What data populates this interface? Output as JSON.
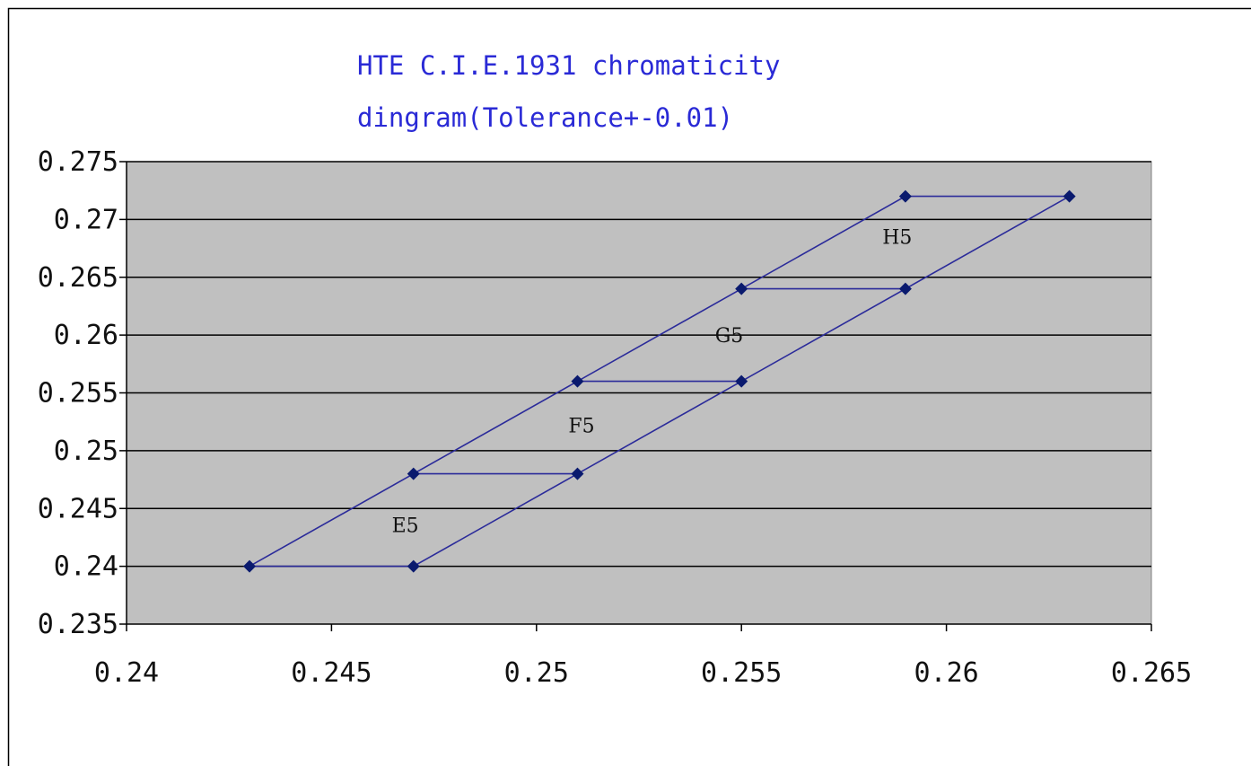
{
  "chart_data": {
    "type": "line",
    "title_lines": [
      "HTE C.I.E.1931 chromaticity",
      "dingram(Tolerance+-0.01)"
    ],
    "xlim": [
      0.24,
      0.265
    ],
    "ylim": [
      0.235,
      0.275
    ],
    "x_ticks": [
      0.24,
      0.245,
      0.25,
      0.255,
      0.26,
      0.265
    ],
    "x_tick_labels": [
      "0.24",
      "0.245",
      "0.25",
      "0.255",
      "0.26",
      "0.265"
    ],
    "y_ticks": [
      0.235,
      0.24,
      0.245,
      0.25,
      0.255,
      0.26,
      0.265,
      0.27,
      0.275
    ],
    "y_tick_labels": [
      "0.235",
      "0.24",
      "0.245",
      "0.25",
      "0.255",
      "0.26",
      "0.265",
      "0.27",
      "0.275"
    ],
    "grid": "horizontal",
    "plot_background": "#c0c0c0",
    "line_color": "#2b2b9a",
    "marker_color": "#0a1a6e",
    "series": [
      {
        "points": [
          [
            0.243,
            0.24
          ],
          [
            0.259,
            0.272
          ],
          [
            0.263,
            0.272
          ],
          [
            0.247,
            0.24
          ],
          [
            0.243,
            0.24
          ]
        ]
      },
      {
        "points": [
          [
            0.247,
            0.248
          ],
          [
            0.251,
            0.248
          ]
        ]
      },
      {
        "points": [
          [
            0.251,
            0.256
          ],
          [
            0.255,
            0.256
          ]
        ]
      },
      {
        "points": [
          [
            0.255,
            0.264
          ],
          [
            0.259,
            0.264
          ]
        ]
      }
    ],
    "annotations": [
      {
        "text": "E5",
        "x": 0.2468,
        "y": 0.2436
      },
      {
        "text": "F5",
        "x": 0.2511,
        "y": 0.2522
      },
      {
        "text": "G5",
        "x": 0.2547,
        "y": 0.26
      },
      {
        "text": "H5",
        "x": 0.2588,
        "y": 0.2685
      }
    ]
  }
}
